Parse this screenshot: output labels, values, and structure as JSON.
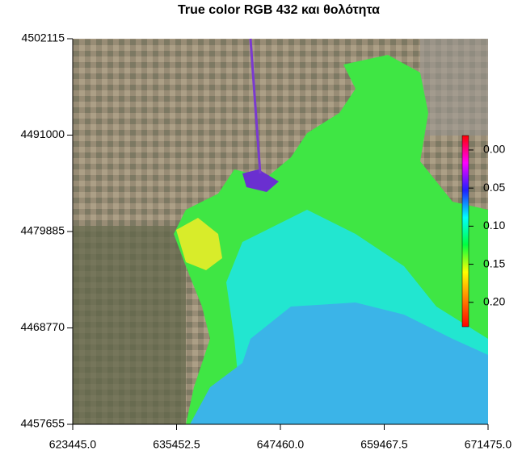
{
  "chart_data": {
    "type": "raster",
    "title": "True color RGB 432 και θολότητα",
    "xlim": [
      623445,
      671475
    ],
    "xticks": [
      {
        "value": 623445,
        "label": "623445.0"
      },
      {
        "value": 635452.5,
        "label": "635452.5"
      },
      {
        "value": 647460,
        "label": "647460.0"
      },
      {
        "value": 659467.5,
        "label": "659467.5"
      },
      {
        "value": 671475,
        "label": "671475.0"
      }
    ],
    "ylim": [
      4457655,
      4502115
    ],
    "yticks": [
      4457655,
      4468770,
      4479885,
      4491000,
      4502115
    ],
    "colorbar": {
      "lim": [
        -0.019,
        0.232
      ],
      "ticks": [
        {
          "value": 0,
          "label": "0.00"
        },
        {
          "value": 0.05,
          "label": "0.05"
        },
        {
          "value": 0.1,
          "label": "0.10"
        },
        {
          "value": 0.15,
          "label": "0.15"
        },
        {
          "value": 0.2,
          "label": "0.20"
        }
      ],
      "colors": [
        "#ff0000",
        "#ff00ff",
        "#2020ff",
        "#00ffff",
        "#00ff40",
        "#ffff00",
        "#ff8000",
        "#ff0000"
      ]
    }
  }
}
